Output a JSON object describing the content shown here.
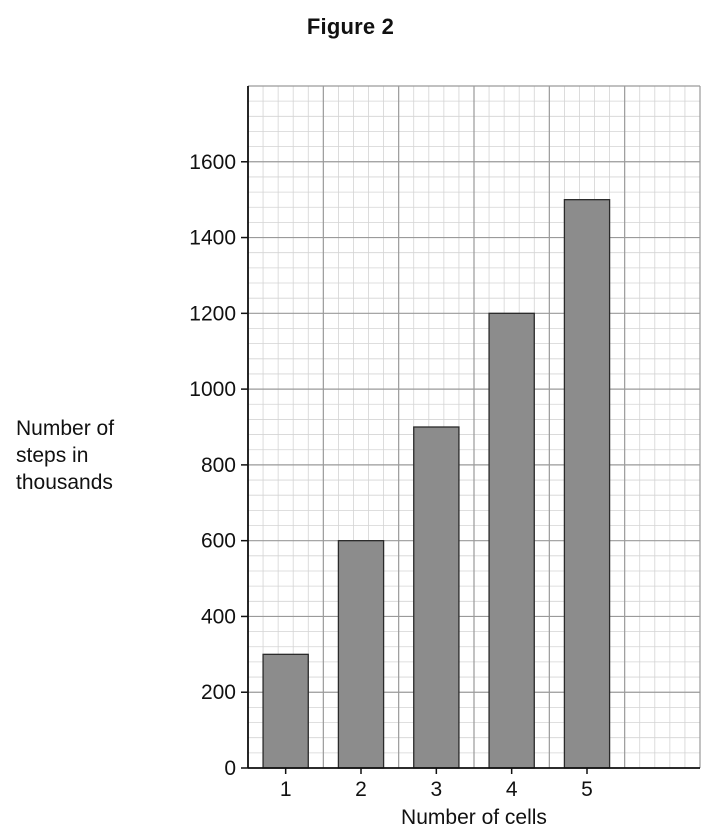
{
  "figure": {
    "title": "Figure 2"
  },
  "chart_data": {
    "type": "bar",
    "title": "Figure 2",
    "xlabel": "Number of cells",
    "ylabel_lines": [
      "Number of",
      "steps in",
      "thousands"
    ],
    "categories": [
      "1",
      "2",
      "3",
      "4",
      "5"
    ],
    "values": [
      300,
      600,
      900,
      1200,
      1500
    ],
    "x_slots": 6,
    "ylim": [
      0,
      1800
    ],
    "yticks": [
      0,
      200,
      400,
      600,
      800,
      1000,
      1200,
      1400,
      1600
    ],
    "grid": true,
    "legend": "none",
    "colors": {
      "bar_fill": "#8c8c8c",
      "bar_stroke": "#2a2a2a",
      "grid_major": "#9a9a9a",
      "grid_minor": "#d4d4d4",
      "axis": "#111111"
    }
  }
}
